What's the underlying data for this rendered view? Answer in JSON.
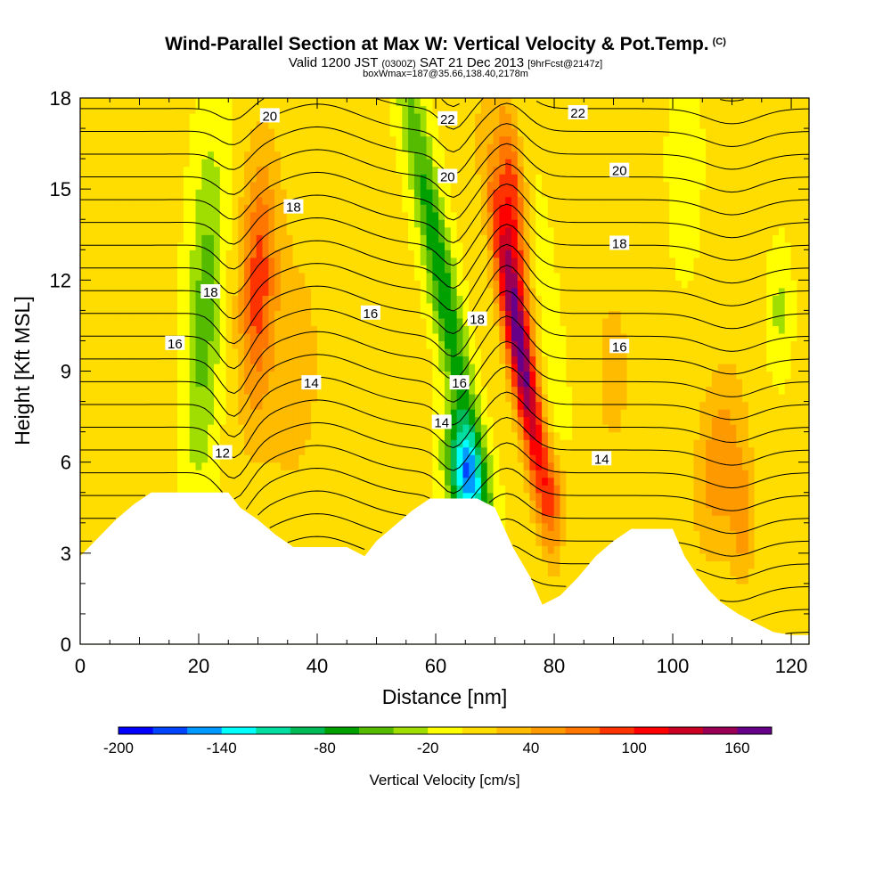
{
  "header": {
    "title": "Wind-Parallel Section at Max W: Vertical Velocity & Pot.Temp.",
    "copyright": "(C)",
    "valid_a": "Valid 1200 JST",
    "valid_zulu": "(0300Z)",
    "valid_b": "SAT 21 Dec 2013",
    "forecast": "[9hrFcst@2147z]",
    "boxline": "boxWmax=187@35.66,138.40,2178m"
  },
  "chart_data": {
    "type": "heatmap",
    "xlabel": "Distance [nm]",
    "ylabel": "Height [Kft MSL]",
    "xlim": [
      0,
      123
    ],
    "ylim": [
      0,
      18
    ],
    "x_ticks": [
      0,
      20,
      40,
      60,
      80,
      100,
      120
    ],
    "y_ticks": [
      0,
      3,
      6,
      9,
      12,
      15,
      18
    ],
    "colorbar": {
      "label": "Vertical Velocity [cm/s]",
      "levels": [
        -200,
        -180,
        -160,
        -140,
        -120,
        -100,
        -80,
        -60,
        -40,
        -20,
        0,
        20,
        40,
        60,
        80,
        100,
        120,
        140,
        160,
        180
      ],
      "tick_labels": [
        "-200",
        "-140",
        "-80",
        "-20",
        "40",
        "100",
        "160"
      ],
      "colors": [
        "#0000ff",
        "#0044ff",
        "#0099ff",
        "#00ffff",
        "#00dda0",
        "#00bb55",
        "#00a000",
        "#55bb00",
        "#a0dd00",
        "#ffff00",
        "#ffdd00",
        "#ffbb00",
        "#ff9900",
        "#ff7700",
        "#ff3300",
        "#ff0000",
        "#cc0022",
        "#990055",
        "#660088"
      ]
    },
    "terrain": [
      [
        0,
        2.9
      ],
      [
        3,
        3.5
      ],
      [
        6,
        4.1
      ],
      [
        9,
        4.6
      ],
      [
        12,
        5.0
      ],
      [
        25,
        5.0
      ],
      [
        27,
        4.5
      ],
      [
        30,
        4.1
      ],
      [
        33,
        3.6
      ],
      [
        36,
        3.2
      ],
      [
        45,
        3.2
      ],
      [
        48,
        2.9
      ],
      [
        50,
        3.4
      ],
      [
        53,
        3.9
      ],
      [
        56,
        4.4
      ],
      [
        59,
        4.8
      ],
      [
        67,
        4.8
      ],
      [
        70,
        4.5
      ],
      [
        73,
        3.2
      ],
      [
        76,
        2.2
      ],
      [
        78,
        1.3
      ],
      [
        81,
        1.6
      ],
      [
        84,
        2.2
      ],
      [
        87,
        2.9
      ],
      [
        90,
        3.4
      ],
      [
        93,
        3.8
      ],
      [
        100,
        3.8
      ],
      [
        102,
        2.9
      ],
      [
        104,
        2.3
      ],
      [
        106,
        1.8
      ],
      [
        108,
        1.4
      ],
      [
        111,
        1.0
      ],
      [
        114,
        0.7
      ],
      [
        117,
        0.4
      ],
      [
        120,
        0.3
      ],
      [
        123,
        0.3
      ]
    ],
    "velocity_features": [
      {
        "x": 30,
        "y": 12,
        "sx": 3,
        "sy": 4,
        "slope": 0.15,
        "w": 80
      },
      {
        "x": 36,
        "y": 9,
        "sx": 7,
        "sy": 6,
        "slope": 0.1,
        "w": 20
      },
      {
        "x": 21,
        "y": 11,
        "sx": 3,
        "sy": 6,
        "slope": 0.2,
        "w": -55
      },
      {
        "x": 61,
        "y": 12,
        "sx": 2.5,
        "sy": 8,
        "slope": -0.9,
        "w": -80
      },
      {
        "x": 65,
        "y": 5.5,
        "sx": 3,
        "sy": 1.8,
        "slope": -0.5,
        "w": -140
      },
      {
        "x": 74,
        "y": 10,
        "sx": 2.2,
        "sy": 5,
        "slope": -0.8,
        "w": 170
      },
      {
        "x": 73,
        "y": 15,
        "sx": 2,
        "sy": 3,
        "slope": -0.5,
        "w": 80
      },
      {
        "x": 80,
        "y": 9,
        "sx": 2,
        "sy": 6,
        "slope": -0.5,
        "w": -20
      },
      {
        "x": 90,
        "y": 9,
        "sx": 4,
        "sy": 4,
        "slope": 0,
        "w": 20
      },
      {
        "x": 108,
        "y": 6,
        "sx": 4,
        "sy": 3,
        "slope": 0.3,
        "w": 50
      },
      {
        "x": 112,
        "y": 4,
        "sx": 2,
        "sy": 2,
        "slope": 0,
        "w": 40
      },
      {
        "x": 118,
        "y": 11,
        "sx": 2,
        "sy": 2,
        "slope": 0,
        "w": -30
      },
      {
        "x": 80,
        "y": 5,
        "sx": 2.5,
        "sy": 1.5,
        "slope": 0,
        "w": 50
      },
      {
        "x": 102,
        "y": 16,
        "sx": 3,
        "sy": 4,
        "slope": 0,
        "w": -15
      }
    ],
    "theta_contour_labels": [
      {
        "text": "20",
        "x": 32,
        "y": 17.4
      },
      {
        "text": "18",
        "x": 36,
        "y": 14.4
      },
      {
        "text": "18",
        "x": 22,
        "y": 11.6
      },
      {
        "text": "16",
        "x": 16,
        "y": 9.9
      },
      {
        "text": "16",
        "x": 49,
        "y": 10.9
      },
      {
        "text": "14",
        "x": 39,
        "y": 8.6
      },
      {
        "text": "12",
        "x": 24,
        "y": 6.3
      },
      {
        "text": "22",
        "x": 62,
        "y": 17.3
      },
      {
        "text": "20",
        "x": 62,
        "y": 15.4
      },
      {
        "text": "18",
        "x": 67,
        "y": 10.7
      },
      {
        "text": "16",
        "x": 64,
        "y": 8.6
      },
      {
        "text": "14",
        "x": 61,
        "y": 7.3
      },
      {
        "text": "22",
        "x": 84,
        "y": 17.5
      },
      {
        "text": "20",
        "x": 91,
        "y": 15.6
      },
      {
        "text": "18",
        "x": 91,
        "y": 13.2
      },
      {
        "text": "16",
        "x": 91,
        "y": 9.8
      },
      {
        "text": "14",
        "x": 88,
        "y": 6.1
      }
    ]
  }
}
